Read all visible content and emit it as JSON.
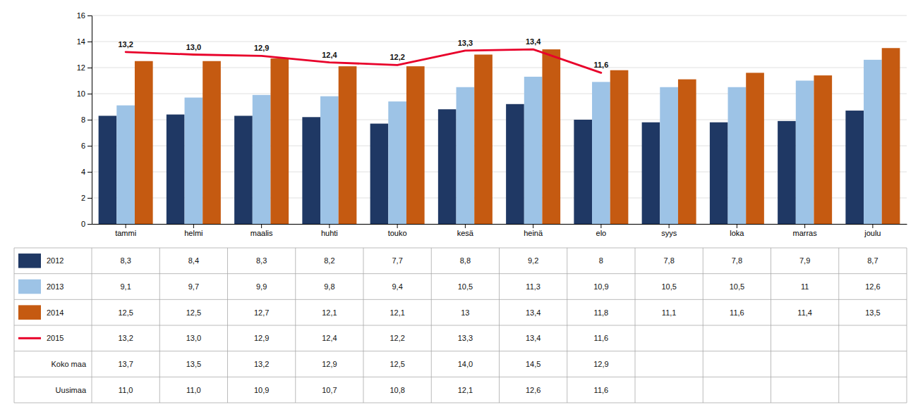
{
  "chart_data": {
    "type": "bar",
    "categories": [
      "tammi",
      "helmi",
      "maalis",
      "huhti",
      "touko",
      "kesä",
      "heinä",
      "elo",
      "syys",
      "loka",
      "marras",
      "joulu"
    ],
    "series": [
      {
        "name": "2012",
        "type": "bar",
        "color": "#1f3864",
        "values": [
          8.3,
          8.4,
          8.3,
          8.2,
          7.7,
          8.8,
          9.2,
          8.0,
          7.8,
          7.8,
          7.9,
          8.7
        ],
        "value_labels": [
          "8,3",
          "8,4",
          "8,3",
          "8,2",
          "7,7",
          "8,8",
          "9,2",
          "8",
          "7,8",
          "7,8",
          "7,9",
          "8,7"
        ]
      },
      {
        "name": "2013",
        "type": "bar",
        "color": "#9dc3e6",
        "values": [
          9.1,
          9.7,
          9.9,
          9.8,
          9.4,
          10.5,
          11.3,
          10.9,
          10.5,
          10.5,
          11.0,
          12.6
        ],
        "value_labels": [
          "9,1",
          "9,7",
          "9,9",
          "9,8",
          "9,4",
          "10,5",
          "11,3",
          "10,9",
          "10,5",
          "10,5",
          "11",
          "12,6"
        ]
      },
      {
        "name": "2014",
        "type": "bar",
        "color": "#c55a11",
        "values": [
          12.5,
          12.5,
          12.7,
          12.1,
          12.1,
          13.0,
          13.4,
          11.8,
          11.1,
          11.6,
          11.4,
          13.5
        ],
        "value_labels": [
          "12,5",
          "12,5",
          "12,7",
          "12,1",
          "12,1",
          "13",
          "13,4",
          "11,8",
          "11,1",
          "11,6",
          "11,4",
          "13,5"
        ]
      },
      {
        "name": "2015",
        "type": "line",
        "color": "#e8002a",
        "data_labels": true,
        "values": [
          13.2,
          13.0,
          12.9,
          12.4,
          12.2,
          13.3,
          13.4,
          11.6,
          null,
          null,
          null,
          null
        ],
        "value_labels": [
          "13,2",
          "13,0",
          "12,9",
          "12,4",
          "12,2",
          "13,3",
          "13,4",
          "11,6",
          null,
          null,
          null,
          null
        ]
      },
      {
        "name": "Koko maa",
        "type": "table",
        "values": [
          13.7,
          13.5,
          13.2,
          12.9,
          12.5,
          14.0,
          14.5,
          12.9,
          null,
          null,
          null,
          null
        ],
        "value_labels": [
          "13,7",
          "13,5",
          "13,2",
          "12,9",
          "12,5",
          "14,0",
          "14,5",
          "12,9",
          null,
          null,
          null,
          null
        ]
      },
      {
        "name": "Uusimaa",
        "type": "table",
        "values": [
          11.0,
          11.0,
          10.9,
          10.7,
          10.8,
          12.1,
          12.6,
          11.6,
          null,
          null,
          null,
          null
        ],
        "value_labels": [
          "11,0",
          "11,0",
          "10,9",
          "10,7",
          "10,8",
          "12,1",
          "12,6",
          "11,6",
          null,
          null,
          null,
          null
        ]
      }
    ],
    "ylim": [
      0,
      16
    ],
    "yticks": [
      0,
      2,
      4,
      6,
      8,
      10,
      12,
      14,
      16
    ],
    "grid": true
  }
}
